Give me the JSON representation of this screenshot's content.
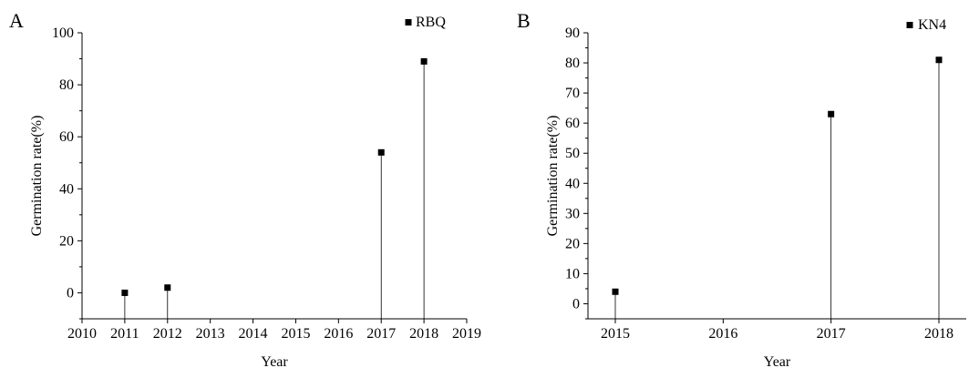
{
  "chart_data": [
    {
      "panel_label": "A",
      "type": "scatter",
      "style": "stem",
      "xlabel": "Year",
      "ylabel": "Germination rate(%)",
      "xlim": [
        2010,
        2019
      ],
      "ylim": [
        -10,
        100
      ],
      "xticks": [
        2010,
        2011,
        2012,
        2013,
        2014,
        2015,
        2016,
        2017,
        2018,
        2019
      ],
      "yticks": [
        0,
        20,
        40,
        60,
        80,
        100
      ],
      "grid": false,
      "legend_position": "top-right",
      "series": [
        {
          "name": "RBQ",
          "color": "#000000",
          "marker": "square",
          "x": [
            2011,
            2012,
            2017,
            2018
          ],
          "y": [
            0,
            2,
            54,
            89
          ]
        }
      ]
    },
    {
      "panel_label": "B",
      "type": "scatter",
      "style": "stem",
      "xlabel": "Year",
      "ylabel": "Germination rate(%)",
      "xaxis_scale": "categorical",
      "xticks": [
        "2015",
        "2016",
        "2017",
        "2018"
      ],
      "ylim": [
        -5,
        90
      ],
      "yticks": [
        0,
        10,
        20,
        30,
        40,
        50,
        60,
        70,
        80,
        90
      ],
      "grid": false,
      "legend_position": "top-right",
      "series": [
        {
          "name": "KN4",
          "color": "#000000",
          "marker": "square",
          "x": [
            "2015",
            "2017",
            "2018"
          ],
          "y": [
            4,
            63,
            81
          ]
        }
      ]
    }
  ]
}
